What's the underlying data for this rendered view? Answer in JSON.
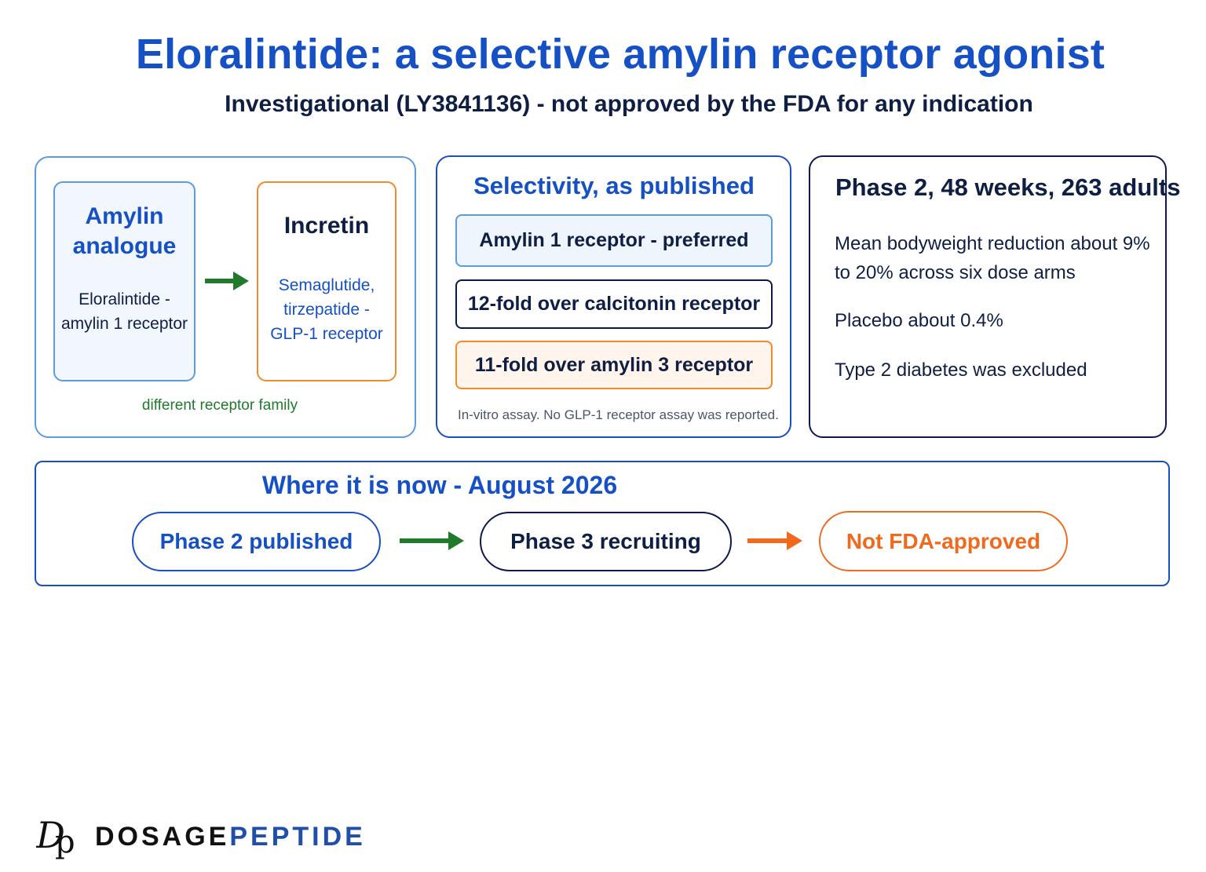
{
  "header": {
    "title": "Eloralintide: a selective amylin receptor agonist",
    "subtitle": "Investigational (LY3841136) - not approved by the FDA for any indication"
  },
  "mechanism": {
    "amylin_title_line1": "Amylin",
    "amylin_title_line2": "analogue",
    "amylin_body_line1": "Eloralintide -",
    "amylin_body_line2": "amylin 1 receptor",
    "incretin_title": "Incretin",
    "incretin_body_line1": "Semaglutide,",
    "incretin_body_line2": "tirzepatide -",
    "incretin_body_line3": "GLP-1 receptor",
    "caption": "different receptor family"
  },
  "selectivity": {
    "title": "Selectivity, as published",
    "items": [
      "Amylin 1 receptor - preferred",
      "12-fold over calcitonin receptor",
      "11-fold over amylin 3 receptor"
    ],
    "note": "In-vitro assay. No GLP-1 receptor assay was reported."
  },
  "trial": {
    "title": "Phase 2, 48 weeks, 263 adults",
    "result_line1": "Mean bodyweight reduction about 9%",
    "result_line2": "to 20% across six dose arms",
    "placebo": "Placebo about 0.4%",
    "exclusion": "Type 2 diabetes was excluded"
  },
  "status": {
    "title": "Where it is now - August 2026",
    "stages": [
      "Phase 2 published",
      "Phase 3 recruiting",
      "Not FDA-approved"
    ]
  },
  "brand": {
    "mark": "Dp",
    "name_part1": "DOSAGE",
    "name_part2": "PEPTIDE"
  },
  "colors": {
    "primary_blue": "#1551c4",
    "light_blue": "#5b9be0",
    "navy": "#0c1a4a",
    "orange": "#f08b28",
    "green": "#1f7a2c",
    "arrow_orange": "#f0691d"
  },
  "icons": [
    "arrow-right-icon"
  ]
}
